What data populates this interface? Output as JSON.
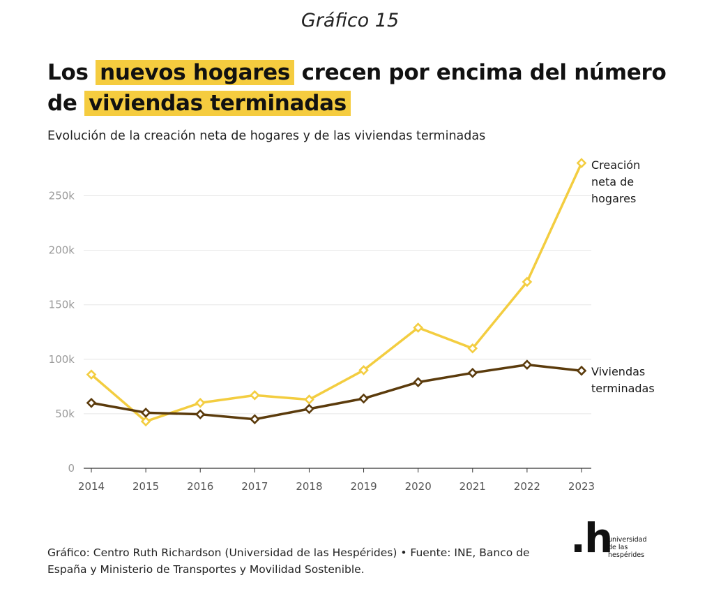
{
  "header": {
    "supertitle": "Gráfico 15",
    "headline_part1": "Los",
    "headline_highlight1": "nuevos hogares",
    "headline_part2": "crecen por encima del número de",
    "headline_highlight2": "viviendas terminadas",
    "subtitle": "Evolución de la creación neta de hogares y de las viviendas terminadas"
  },
  "colors": {
    "highlight": "#f5cc3f",
    "households": "#f3cd40",
    "dwellings": "#5b3b0c",
    "grid": "#e6e6e6"
  },
  "chart_data": {
    "type": "line",
    "x": [
      2014,
      2015,
      2016,
      2017,
      2018,
      2019,
      2020,
      2021,
      2022,
      2023
    ],
    "series": [
      {
        "name": "Creación neta de hogares",
        "label_lines": [
          "Creación",
          "neta de",
          "hogares"
        ],
        "values": [
          86000,
          43000,
          60000,
          67000,
          63000,
          90000,
          129000,
          110000,
          171000,
          280000
        ],
        "color": "#f3cd40"
      },
      {
        "name": "Viviendas terminadas",
        "label_lines": [
          "Viviendas",
          "terminadas"
        ],
        "values": [
          60000,
          51000,
          49500,
          45000,
          54500,
          64000,
          79000,
          87500,
          95000,
          89500
        ],
        "color": "#5b3b0c"
      }
    ],
    "yticks": [
      0,
      50000,
      100000,
      150000,
      200000,
      250000
    ],
    "ytick_labels": [
      "0",
      "50k",
      "100k",
      "150k",
      "200k",
      "250k"
    ],
    "xtick_labels": [
      "2014",
      "2015",
      "2016",
      "2017",
      "2018",
      "2019",
      "2020",
      "2021",
      "2022",
      "2023"
    ],
    "ylim": [
      0,
      280000
    ],
    "grid": true,
    "xlabel": "",
    "ylabel": "",
    "marker": "diamond"
  },
  "footer": {
    "source_line1": "Gráfico: Centro Ruth Richardson (Universidad de las Hespérides) • Fuente: INE, Banco de",
    "source_line2": "España y Ministerio de Transportes y Movilidad Sostenible."
  },
  "logo": {
    "mark": ".h",
    "line1": "universidad",
    "line2": "de las",
    "line3": "hespérides"
  }
}
